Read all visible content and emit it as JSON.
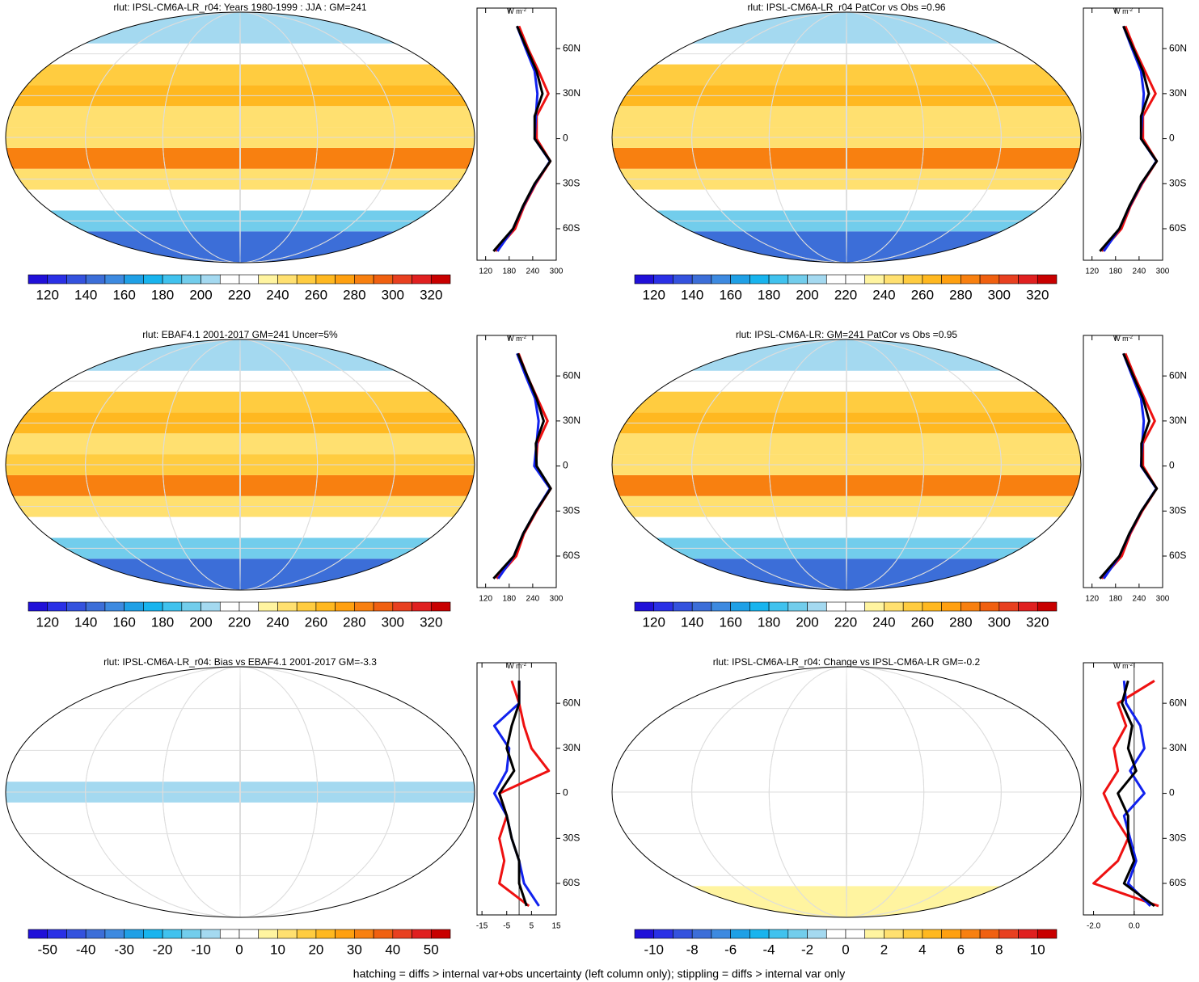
{
  "chart_data": [
    {
      "type": "profile",
      "title": "rlut: IPSL-CM6A-LR_r04: Years 1980-1999 : JJA : GM=241",
      "unit": "W m",
      "unit_power": "-2",
      "y": [
        -75,
        -60,
        -45,
        -30,
        -15,
        0,
        15,
        30,
        45,
        60,
        75
      ],
      "ylim": [
        -81,
        87
      ],
      "yticks": [
        {
          "value": 60,
          "label": "60N"
        },
        {
          "value": 30,
          "label": "30N"
        },
        0,
        {
          "value": -30,
          "label": "30S"
        },
        {
          "value": -60,
          "label": "60S"
        }
      ],
      "xlim": [
        98,
        300
      ],
      "xticks": [
        120,
        180,
        240,
        300
      ],
      "series": [
        {
          "color": "#ee1111",
          "values": [
            145,
            195,
            218,
            248,
            285,
            250,
            250,
            280,
            255,
            228,
            205
          ]
        },
        {
          "color": "#1122ee",
          "values": [
            150,
            190,
            216,
            246,
            284,
            245,
            248,
            252,
            245,
            222,
            200
          ]
        },
        {
          "color": "#000000",
          "values": [
            140,
            190,
            215,
            245,
            285,
            245,
            245,
            265,
            250,
            225,
            200
          ]
        }
      ],
      "colorbar_lim": [
        110,
        330
      ],
      "colorbar_ticks": [
        120,
        140,
        160,
        180,
        200,
        220,
        240,
        260,
        280,
        300,
        320
      ],
      "colorbar_colors": [
        "#2010d8",
        "#2a30e6",
        "#3452de",
        "#3c6ed8",
        "#3d8ae0",
        "#1fa0e6",
        "#18b4ee",
        "#40c2ee",
        "#72cdec",
        "#a4d9f0",
        "#ffffff",
        "#ffffff",
        "#fff4a0",
        "#ffe070",
        "#ffcc40",
        "#ffb820",
        "#ffa010",
        "#f88010",
        "#f06010",
        "#e84020",
        "#e02020",
        "#c80000"
      ]
    },
    {
      "type": "profile",
      "title": "rlut: IPSL-CM6A-LR_r04 PatCor vs Obs =0.96",
      "unit": "W m",
      "unit_power": "-2",
      "y": [
        -75,
        -60,
        -45,
        -30,
        -15,
        0,
        15,
        30,
        45,
        60,
        75
      ],
      "ylim": [
        -81,
        87
      ],
      "yticks": [
        {
          "value": 60,
          "label": "60N"
        },
        {
          "value": 30,
          "label": "30N"
        },
        0,
        {
          "value": -30,
          "label": "30S"
        },
        {
          "value": -60,
          "label": "60S"
        }
      ],
      "xlim": [
        98,
        300
      ],
      "xticks": [
        120,
        180,
        240,
        300
      ],
      "series": [
        {
          "color": "#ee1111",
          "values": [
            145,
            195,
            218,
            248,
            285,
            250,
            250,
            282,
            255,
            228,
            205
          ]
        },
        {
          "color": "#1122ee",
          "values": [
            150,
            190,
            216,
            246,
            284,
            245,
            248,
            252,
            245,
            222,
            200
          ]
        },
        {
          "color": "#000000",
          "values": [
            140,
            190,
            215,
            245,
            285,
            245,
            245,
            265,
            250,
            225,
            200
          ]
        }
      ],
      "colorbar_lim": [
        110,
        330
      ],
      "colorbar_ticks": [
        120,
        140,
        160,
        180,
        200,
        220,
        240,
        260,
        280,
        300,
        320
      ],
      "colorbar_colors": [
        "#2010d8",
        "#2a30e6",
        "#3452de",
        "#3c6ed8",
        "#3d8ae0",
        "#1fa0e6",
        "#18b4ee",
        "#40c2ee",
        "#72cdec",
        "#a4d9f0",
        "#ffffff",
        "#ffffff",
        "#fff4a0",
        "#ffe070",
        "#ffcc40",
        "#ffb820",
        "#ffa010",
        "#f88010",
        "#f06010",
        "#e84020",
        "#e02020",
        "#c80000"
      ]
    },
    {
      "type": "profile",
      "title": "rlut: EBAF4.1 2001-2017 GM=241 Uncer=5%",
      "unit": "W m",
      "unit_power": "-2",
      "y": [
        -75,
        -60,
        -45,
        -30,
        -15,
        0,
        15,
        30,
        45,
        60,
        75
      ],
      "ylim": [
        -81,
        87
      ],
      "yticks": [
        {
          "value": 60,
          "label": "60N"
        },
        {
          "value": 30,
          "label": "30N"
        },
        0,
        {
          "value": -30,
          "label": "30S"
        },
        {
          "value": -60,
          "label": "60S"
        }
      ],
      "xlim": [
        98,
        300
      ],
      "xticks": [
        120,
        180,
        240,
        300
      ],
      "series": [
        {
          "color": "#ee1111",
          "values": [
            148,
            198,
            218,
            250,
            286,
            248,
            252,
            278,
            252,
            226,
            204
          ]
        },
        {
          "color": "#1122ee",
          "values": [
            152,
            192,
            216,
            248,
            284,
            244,
            250,
            255,
            246,
            222,
            200
          ]
        },
        {
          "color": "#000000",
          "values": [
            140,
            192,
            216,
            248,
            286,
            250,
            248,
            268,
            250,
            226,
            202
          ]
        }
      ],
      "colorbar_lim": [
        110,
        330
      ],
      "colorbar_ticks": [
        120,
        140,
        160,
        180,
        200,
        220,
        240,
        260,
        280,
        300,
        320
      ],
      "colorbar_colors": [
        "#2010d8",
        "#2a30e6",
        "#3452de",
        "#3c6ed8",
        "#3d8ae0",
        "#1fa0e6",
        "#18b4ee",
        "#40c2ee",
        "#72cdec",
        "#a4d9f0",
        "#ffffff",
        "#ffffff",
        "#fff4a0",
        "#ffe070",
        "#ffcc40",
        "#ffb820",
        "#ffa010",
        "#f88010",
        "#f06010",
        "#e84020",
        "#e02020",
        "#c80000"
      ]
    },
    {
      "type": "profile",
      "title": "rlut: IPSL-CM6A-LR: GM=241 PatCor vs Obs =0.95",
      "unit": "W m",
      "unit_power": "-2",
      "y": [
        -75,
        -60,
        -45,
        -30,
        -15,
        0,
        15,
        30,
        45,
        60,
        75
      ],
      "ylim": [
        -81,
        87
      ],
      "yticks": [
        {
          "value": 60,
          "label": "60N"
        },
        {
          "value": 30,
          "label": "30N"
        },
        0,
        {
          "value": -30,
          "label": "30S"
        },
        {
          "value": -60,
          "label": "60S"
        }
      ],
      "xlim": [
        98,
        300
      ],
      "xticks": [
        120,
        180,
        240,
        300
      ],
      "series": [
        {
          "color": "#ee1111",
          "values": [
            145,
            196,
            218,
            248,
            285,
            250,
            250,
            280,
            254,
            228,
            205
          ]
        },
        {
          "color": "#1122ee",
          "values": [
            150,
            190,
            216,
            246,
            284,
            245,
            248,
            252,
            245,
            222,
            200
          ]
        },
        {
          "color": "#000000",
          "values": [
            140,
            190,
            215,
            246,
            285,
            246,
            246,
            266,
            250,
            225,
            200
          ]
        }
      ],
      "colorbar_lim": [
        110,
        330
      ],
      "colorbar_ticks": [
        120,
        140,
        160,
        180,
        200,
        220,
        240,
        260,
        280,
        300,
        320
      ],
      "colorbar_colors": [
        "#2010d8",
        "#2a30e6",
        "#3452de",
        "#3c6ed8",
        "#3d8ae0",
        "#1fa0e6",
        "#18b4ee",
        "#40c2ee",
        "#72cdec",
        "#a4d9f0",
        "#ffffff",
        "#ffffff",
        "#fff4a0",
        "#ffe070",
        "#ffcc40",
        "#ffb820",
        "#ffa010",
        "#f88010",
        "#f06010",
        "#e84020",
        "#e02020",
        "#c80000"
      ]
    },
    {
      "type": "profile",
      "title": "rlut: IPSL-CM6A-LR_r04: Bias vs EBAF4.1 2001-2017 GM=-3.3",
      "unit": "W m",
      "unit_power": "-2",
      "y": [
        -75,
        -60,
        -45,
        -30,
        -15,
        0,
        15,
        30,
        45,
        60,
        75
      ],
      "ylim": [
        -81,
        87
      ],
      "yticks": [
        {
          "value": 60,
          "label": "60N"
        },
        {
          "value": 30,
          "label": "30N"
        },
        0,
        {
          "value": -30,
          "label": "30S"
        },
        {
          "value": -60,
          "label": "60S"
        }
      ],
      "xlim": [
        -17,
        15
      ],
      "xticks": [
        -15,
        -5,
        5,
        15
      ],
      "series": [
        {
          "color": "#ee1111",
          "values": [
            4,
            -8,
            -6,
            -8,
            -5,
            -8,
            12,
            5,
            2,
            0,
            -3
          ]
        },
        {
          "color": "#1122ee",
          "values": [
            8,
            2,
            0,
            -3,
            -5,
            -10,
            -5,
            -4,
            -10,
            0,
            0
          ]
        },
        {
          "color": "#000000",
          "values": [
            3,
            0,
            0,
            -3,
            -5,
            -8,
            -2,
            -5,
            -3,
            0,
            0
          ]
        }
      ],
      "colorbar_lim": [
        -55,
        55
      ],
      "colorbar_ticks": [
        -50,
        -40,
        -30,
        -20,
        -10,
        0,
        10,
        20,
        30,
        40,
        50
      ],
      "colorbar_colors": [
        "#2010d8",
        "#2a30e6",
        "#3452de",
        "#3c6ed8",
        "#3d8ae0",
        "#1fa0e6",
        "#18b4ee",
        "#40c2ee",
        "#72cdec",
        "#a4d9f0",
        "#ffffff",
        "#ffffff",
        "#fff4a0",
        "#ffe070",
        "#ffcc40",
        "#ffb820",
        "#ffa010",
        "#f88010",
        "#f06010",
        "#e84020",
        "#e02020",
        "#c80000"
      ]
    },
    {
      "type": "profile",
      "title": "rlut: IPSL-CM6A-LR_r04: Change vs IPSL-CM6A-LR GM=-0.2",
      "unit": "W m",
      "unit_power": "-2",
      "y": [
        -75,
        -60,
        -45,
        -30,
        -15,
        0,
        15,
        30,
        45,
        60,
        75
      ],
      "ylim": [
        -81,
        87
      ],
      "yticks": [
        {
          "value": 60,
          "label": "60N"
        },
        {
          "value": 30,
          "label": "30N"
        },
        0,
        {
          "value": -30,
          "label": "30S"
        },
        {
          "value": -60,
          "label": "60S"
        }
      ],
      "xlim": [
        -2.5,
        1.4
      ],
      "xticks": [
        {
          "value": -2,
          "label": "-2.0"
        },
        {
          "value": 0,
          "label": "0.0"
        }
      ],
      "series": [
        {
          "color": "#ee1111",
          "values": [
            1.2,
            -2,
            -0.8,
            -0.3,
            -1,
            -1.5,
            -0.8,
            -1,
            -0.4,
            -0.8,
            1
          ]
        },
        {
          "color": "#1122ee",
          "values": [
            0.8,
            -0.3,
            0.1,
            -0.2,
            -0.5,
            0.5,
            -0.2,
            0.5,
            0.3,
            -0.4,
            -0.5
          ]
        },
        {
          "color": "#000000",
          "values": [
            1,
            -0.5,
            0,
            -0.3,
            -0.3,
            -0.8,
            0.1,
            -0.3,
            -0.1,
            -0.6,
            -0.3
          ]
        }
      ],
      "colorbar_lim": [
        -11,
        11
      ],
      "colorbar_ticks": [
        -10,
        -8,
        -6,
        -4,
        -2,
        0,
        2,
        4,
        6,
        8,
        10
      ],
      "colorbar_colors": [
        "#2010d8",
        "#2a30e6",
        "#3452de",
        "#3c6ed8",
        "#3d8ae0",
        "#1fa0e6",
        "#18b4ee",
        "#40c2ee",
        "#72cdec",
        "#a4d9f0",
        "#ffffff",
        "#ffffff",
        "#fff4a0",
        "#ffe070",
        "#ffcc40",
        "#ffb820",
        "#ffa010",
        "#f88010",
        "#f06010",
        "#e84020",
        "#e02020",
        "#c80000"
      ]
    }
  ],
  "caption": "hatching = diffs > internal var+obs uncertainty (left column only); stippling = diffs > internal var only"
}
